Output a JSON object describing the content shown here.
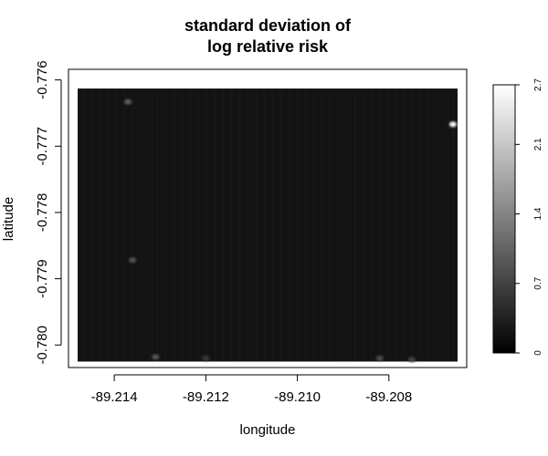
{
  "chart_data": {
    "type": "heatmap",
    "title": "standard deviation of\nlog relative risk",
    "title_lines": [
      "standard deviation of",
      "log relative risk"
    ],
    "xlabel": "longitude",
    "ylabel": "latitude",
    "x_ticks": [
      -89.214,
      -89.212,
      -89.21,
      -89.208
    ],
    "x_tick_labels": [
      "-89.214",
      "-89.212",
      "-89.210",
      "-89.208"
    ],
    "y_ticks": [
      -0.776,
      -0.777,
      -0.778,
      -0.779,
      -0.78
    ],
    "y_tick_labels": [
      "-0.776",
      "-0.777",
      "-0.778",
      "-0.779",
      "-0.780"
    ],
    "xlim": [
      -89.215,
      -89.2063
    ],
    "ylim": [
      -0.78034,
      -0.77584
    ],
    "raster_x_range": [
      -89.2148,
      -89.2065
    ],
    "raster_y_range": [
      -0.78025,
      -0.77613
    ],
    "colorbar": {
      "range": [
        0,
        2.7
      ],
      "ticks": [
        0,
        0.7,
        1.4,
        2.1,
        2.7
      ],
      "tick_labels": [
        "0",
        "0.7",
        "1.4",
        "2.1",
        "2.7"
      ],
      "low_color": "#000000",
      "high_color": "#ffffff"
    },
    "background_value": 0.2,
    "hotspots": [
      {
        "x": -89.2137,
        "y": -0.77633,
        "value": 1.0
      },
      {
        "x": -89.2066,
        "y": -0.77667,
        "value": 2.7
      },
      {
        "x": -89.2136,
        "y": -0.77872,
        "value": 0.9
      },
      {
        "x": -89.2131,
        "y": -0.78018,
        "value": 0.9
      },
      {
        "x": -89.212,
        "y": -0.7802,
        "value": 0.6
      },
      {
        "x": -89.2082,
        "y": -0.7802,
        "value": 0.8
      },
      {
        "x": -89.2075,
        "y": -0.78022,
        "value": 0.7
      }
    ],
    "grid": false,
    "legend": "right",
    "colors": {
      "background": "#ffffff",
      "axis": "#000000"
    }
  }
}
